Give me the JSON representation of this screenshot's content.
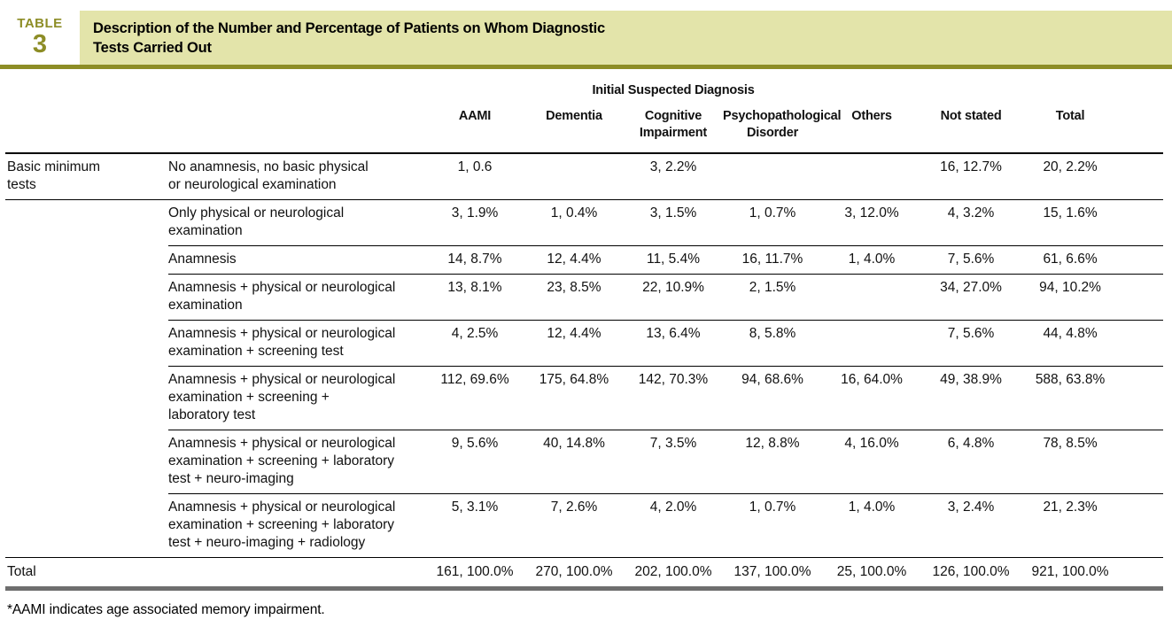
{
  "kicker": {
    "word": "TABLE",
    "number": "3"
  },
  "title": "Description of the Number and Percentage of Patients on Whom Diagnostic\nTests Carried Out",
  "spanner": "Initial Suspected Diagnosis",
  "columns": [
    "AAMI",
    "Dementia",
    "Cognitive\nImpairment",
    "Psychopathological\nDisorder",
    "Others",
    "Not stated",
    "Total"
  ],
  "rows": [
    {
      "group": "Basic minimum\ntests",
      "label": "No anamnesis, no basic physical\nor neurological examination",
      "values": [
        "1, 0.6",
        "",
        "3, 2.2%",
        "",
        "",
        "16, 12.7%",
        "20, 2.2%"
      ]
    },
    {
      "group": "",
      "label": "Only physical or neurological\nexamination",
      "values": [
        "3, 1.9%",
        "1, 0.4%",
        "3, 1.5%",
        "1, 0.7%",
        "3, 12.0%",
        "4, 3.2%",
        "15, 1.6%"
      ]
    },
    {
      "group": "",
      "label": "Anamnesis",
      "values": [
        "14, 8.7%",
        "12, 4.4%",
        "11, 5.4%",
        "16, 11.7%",
        "1, 4.0%",
        "7, 5.6%",
        "61, 6.6%"
      ]
    },
    {
      "group": "",
      "label": "Anamnesis + physical or neurological\nexamination",
      "values": [
        "13, 8.1%",
        "23, 8.5%",
        "22, 10.9%",
        "2, 1.5%",
        "",
        "34, 27.0%",
        "94, 10.2%"
      ]
    },
    {
      "group": "",
      "label": "Anamnesis + physical or neurological\nexamination + screening test",
      "values": [
        "4, 2.5%",
        "12, 4.4%",
        "13, 6.4%",
        "8, 5.8%",
        "",
        "7, 5.6%",
        "44, 4.8%"
      ]
    },
    {
      "group": "",
      "label": "Anamnesis + physical or neurological\nexamination + screening +\nlaboratory test",
      "values": [
        "112, 69.6%",
        "175, 64.8%",
        "142, 70.3%",
        "94, 68.6%",
        "16, 64.0%",
        "49, 38.9%",
        "588, 63.8%"
      ]
    },
    {
      "group": "",
      "label": "Anamnesis + physical or neurological\nexamination + screening + laboratory\ntest + neuro-imaging",
      "values": [
        "9, 5.6%",
        "40, 14.8%",
        "7, 3.5%",
        "12, 8.8%",
        "4, 16.0%",
        "6, 4.8%",
        "78, 8.5%"
      ]
    },
    {
      "group": "",
      "label": "Anamnesis + physical or neurological\nexamination + screening + laboratory\ntest + neuro-imaging + radiology",
      "values": [
        "5, 3.1%",
        "7, 2.6%",
        "4, 2.0%",
        "1, 0.7%",
        "1, 4.0%",
        "3, 2.4%",
        "21, 2.3%"
      ]
    }
  ],
  "total_row": {
    "label": "Total",
    "values": [
      "161, 100.0%",
      "270, 100.0%",
      "202, 100.0%",
      "137, 100.0%",
      "25, 100.0%",
      "126, 100.0%",
      "921, 100.0%"
    ]
  },
  "footnote": "*AAMI indicates age associated memory impairment.",
  "colors": {
    "accent_olive": "#8d8d26",
    "title_bg": "#e3e4aa",
    "bottom_bar": "#6e6e6e",
    "rule_black": "#000000"
  }
}
